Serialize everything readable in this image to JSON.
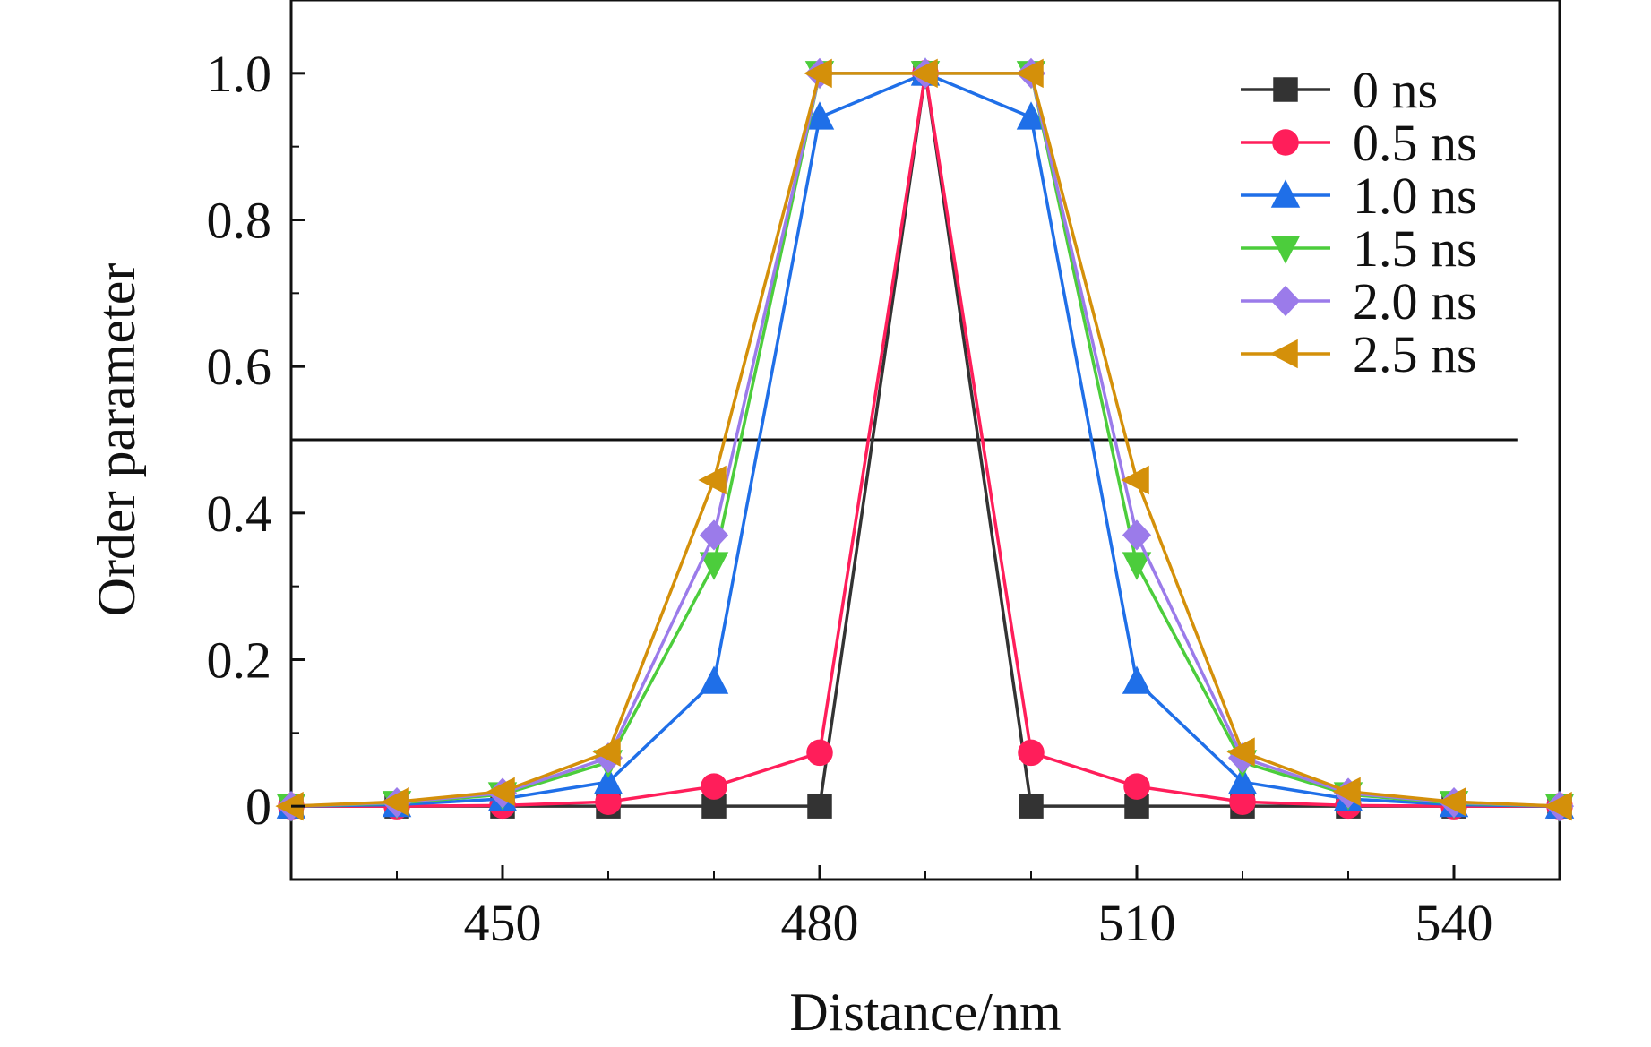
{
  "chart_data": {
    "type": "line",
    "title": "",
    "xlabel": "Distance/nm",
    "ylabel": "Order parameter",
    "xlim": [
      430,
      550
    ],
    "ylim": [
      -0.1,
      1.1
    ],
    "xticks": [
      450,
      480,
      510,
      540
    ],
    "xtick_labels": [
      "450",
      "480",
      "510",
      "540"
    ],
    "yticks": [
      0,
      0.2,
      0.4,
      0.6,
      0.8,
      1.0
    ],
    "ytick_labels": [
      "0",
      "0.2",
      "0.4",
      "0.6",
      "0.8",
      "1.0"
    ],
    "reference_line": {
      "y": 0.5,
      "x_range": [
        430,
        546
      ]
    },
    "grid": false,
    "legend_position": "top-right",
    "x": [
      430,
      440,
      450,
      460,
      470,
      480,
      490,
      500,
      510,
      520,
      530,
      540,
      550
    ],
    "series": [
      {
        "name": "0 ns",
        "color": "#333333",
        "marker": "square",
        "values": [
          0,
          0,
          0,
          0,
          0,
          0,
          1.0,
          0,
          0,
          0,
          0,
          0,
          0
        ]
      },
      {
        "name": "0.5 ns",
        "color": "#ff1e5a",
        "marker": "circle",
        "values": [
          0,
          0,
          0.001,
          0.006,
          0.027,
          0.073,
          1.0,
          0.073,
          0.027,
          0.006,
          0.001,
          0,
          0
        ]
      },
      {
        "name": "1.0 ns",
        "color": "#1f6fe8",
        "marker": "triangle-up",
        "values": [
          0,
          0.002,
          0.01,
          0.033,
          0.17,
          0.94,
          1.0,
          0.94,
          0.17,
          0.033,
          0.01,
          0.002,
          0
        ]
      },
      {
        "name": "1.5 ns",
        "color": "#4ccd3c",
        "marker": "triangle-down",
        "values": [
          0,
          0.004,
          0.016,
          0.06,
          0.33,
          1.0,
          1.0,
          1.0,
          0.33,
          0.06,
          0.016,
          0.004,
          0
        ]
      },
      {
        "name": "2.0 ns",
        "color": "#9b7bea",
        "marker": "diamond",
        "values": [
          0,
          0.005,
          0.018,
          0.066,
          0.37,
          1.0,
          1.0,
          1.0,
          0.37,
          0.066,
          0.018,
          0.005,
          0
        ]
      },
      {
        "name": "2.5 ns",
        "color": "#d4900a",
        "marker": "triangle-left",
        "values": [
          0,
          0.006,
          0.02,
          0.074,
          0.445,
          1.0,
          1.0,
          1.0,
          0.445,
          0.074,
          0.02,
          0.006,
          0
        ]
      }
    ]
  }
}
